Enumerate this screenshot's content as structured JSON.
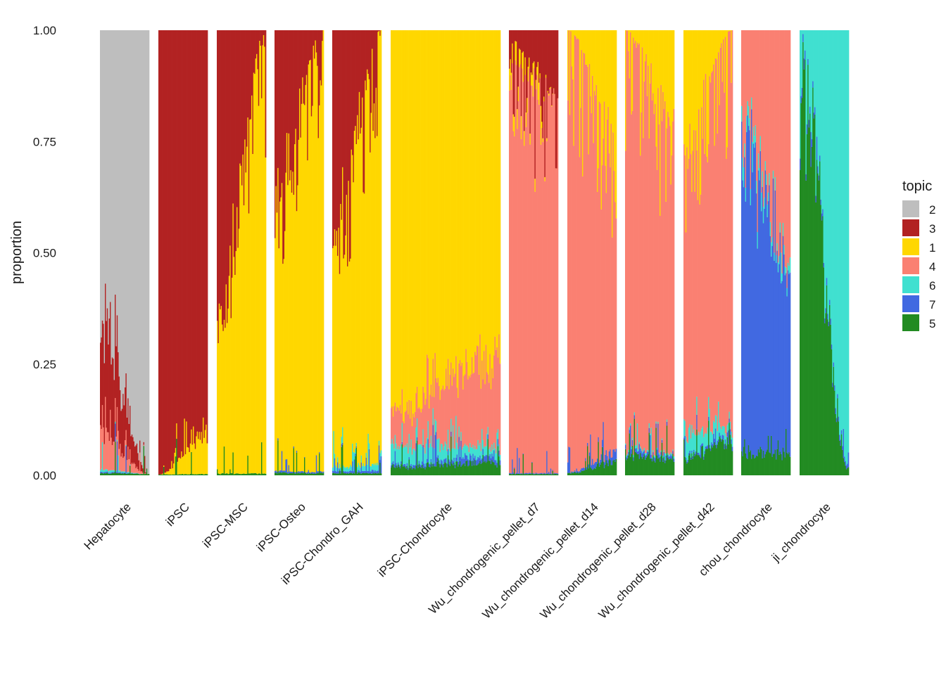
{
  "chart_data": {
    "type": "stacked-bar",
    "title": "",
    "xlabel": "",
    "ylabel": "proportion",
    "ylim": [
      0,
      1
    ],
    "yticks": [
      0,
      0.25,
      0.5,
      0.75,
      1
    ],
    "ytick_labels": [
      "0.00",
      "0.25",
      "0.50",
      "0.75",
      "1.00"
    ],
    "grid": false,
    "legend_position": "right",
    "legend": {
      "title": "topic",
      "entries": [
        {
          "topic": "2",
          "color": "#BEBEBE"
        },
        {
          "topic": "3",
          "color": "#B22222"
        },
        {
          "topic": "1",
          "color": "#FFD700"
        },
        {
          "topic": "4",
          "color": "#FA8072"
        },
        {
          "topic": "6",
          "color": "#40E0D0"
        },
        {
          "topic": "7",
          "color": "#4169E1"
        },
        {
          "topic": "5",
          "color": "#228B22"
        }
      ]
    },
    "stack_order_bottom_to_top": [
      "5",
      "7",
      "6",
      "4",
      "1",
      "3",
      "2"
    ],
    "categories": [
      "Hepatocyte",
      "iPSC",
      "iPSC-MSC",
      "iPSC-Osteo",
      "iPSC-Chondro_GAH",
      "iPSC-Chondrocyte",
      "Wu_chondrogenic_pellet_d7",
      "Wu_chondrogenic_pellet_d14",
      "Wu_chondrogenic_pellet_d28",
      "Wu_chondrogenic_pellet_d42",
      "chou_chondrocyte",
      "ji_chondrocyte"
    ],
    "panels": [
      {
        "name": "Hepatocyte",
        "n_cells": 50,
        "start": {
          "5": 0.005,
          "7": 0.003,
          "6": 0.005,
          "4": 0.08,
          "1": 0.0,
          "3": 0.24
        },
        "end": {
          "5": 0.003,
          "7": 0.0,
          "6": 0.0,
          "4": 0.0,
          "1": 0.0,
          "3": 0.0
        }
      },
      {
        "name": "iPSC",
        "n_cells": 50,
        "start": {
          "5": 0.002,
          "7": 0.0,
          "6": 0.0,
          "4": 0.0,
          "1": 0.0,
          "3": 0.998
        },
        "end": {
          "5": 0.003,
          "7": 0.0,
          "6": 0.0,
          "4": 0.0,
          "1": 0.09,
          "3": 0.907
        }
      },
      {
        "name": "iPSC-MSC",
        "n_cells": 50,
        "start": {
          "5": 0.004,
          "7": 0.0,
          "6": 0.0,
          "4": 0.0,
          "1": 0.36,
          "3": 0.636
        },
        "end": {
          "5": 0.004,
          "7": 0.0,
          "6": 0.0,
          "4": 0.0,
          "1": 0.996,
          "3": 0.0
        }
      },
      {
        "name": "iPSC-Osteo",
        "n_cells": 50,
        "start": {
          "5": 0.006,
          "7": 0.004,
          "6": 0.0,
          "4": 0.0,
          "1": 0.6,
          "3": 0.39
        },
        "end": {
          "5": 0.005,
          "7": 0.003,
          "6": 0.0,
          "4": 0.0,
          "1": 0.992,
          "3": 0.0
        }
      },
      {
        "name": "iPSC-Chondro_GAH",
        "n_cells": 50,
        "start": {
          "5": 0.005,
          "7": 0.005,
          "6": 0.01,
          "4": 0.0,
          "1": 0.5,
          "3": 0.48
        },
        "end": {
          "5": 0.005,
          "7": 0.005,
          "6": 0.015,
          "4": 0.0,
          "1": 0.975,
          "3": 0.0
        }
      },
      {
        "name": "iPSC-Chondrocyte",
        "n_cells": 110,
        "start": {
          "5": 0.02,
          "7": 0.005,
          "6": 0.05,
          "4": 0.08,
          "1": 0.845,
          "3": 0.0
        },
        "end": {
          "5": 0.03,
          "7": 0.015,
          "6": 0.02,
          "4": 0.2,
          "1": 0.735,
          "3": 0.0
        }
      },
      {
        "name": "Wu_chondrogenic_pellet_d7",
        "n_cells": 50,
        "start": {
          "5": 0.003,
          "7": 0.002,
          "6": 0.0,
          "4": 0.92,
          "1": 0.05,
          "3": 0.025
        },
        "end": {
          "5": 0.003,
          "7": 0.002,
          "6": 0.0,
          "4": 0.84,
          "1": 0.0,
          "3": 0.155
        }
      },
      {
        "name": "Wu_chondrogenic_pellet_d14",
        "n_cells": 50,
        "start": {
          "5": 0.005,
          "7": 0.002,
          "6": 0.0,
          "4": 0.993,
          "1": 0.0,
          "3": 0.0
        },
        "end": {
          "5": 0.03,
          "7": 0.02,
          "6": 0.0,
          "4": 0.7,
          "1": 0.25,
          "3": 0.0
        }
      },
      {
        "name": "Wu_chondrogenic_pellet_d28",
        "n_cells": 50,
        "start": {
          "5": 0.05,
          "7": 0.01,
          "6": 0.005,
          "4": 0.935,
          "1": 0.0,
          "3": 0.0
        },
        "end": {
          "5": 0.04,
          "7": 0.01,
          "6": 0.005,
          "4": 0.72,
          "1": 0.225,
          "3": 0.0
        }
      },
      {
        "name": "Wu_chondrogenic_pellet_d42",
        "n_cells": 50,
        "start": {
          "5": 0.04,
          "7": 0.005,
          "6": 0.05,
          "4": 0.645,
          "1": 0.26,
          "3": 0.0
        },
        "end": {
          "5": 0.08,
          "7": 0.01,
          "6": 0.02,
          "4": 0.89,
          "1": 0.0,
          "3": 0.0
        }
      },
      {
        "name": "chou_chondrocyte",
        "n_cells": 50,
        "start": {
          "5": 0.05,
          "7": 0.74,
          "6": 0.04,
          "4": 0.17,
          "1": 0.0,
          "3": 0.0
        },
        "end": {
          "5": 0.05,
          "7": 0.42,
          "6": 0.02,
          "4": 0.51,
          "1": 0.0,
          "3": 0.0
        }
      },
      {
        "name": "ji_chondrocyte",
        "n_cells": 50,
        "start": {
          "5": 0.98,
          "7": 0.02,
          "6": 0.0,
          "4": 0.0,
          "1": 0.0,
          "3": 0.0
        },
        "end": {
          "5": 0.02,
          "7": 0.01,
          "6": 0.97,
          "4": 0.0,
          "1": 0.0,
          "3": 0.0
        }
      }
    ]
  }
}
